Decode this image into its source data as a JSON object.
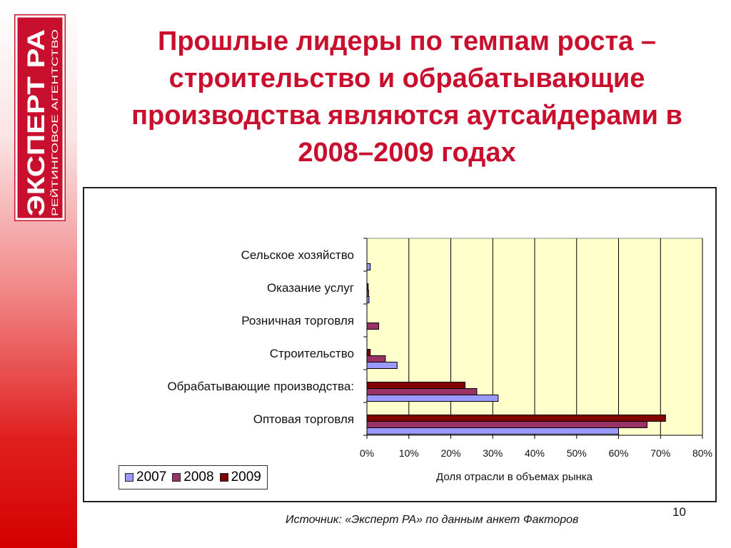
{
  "logo": {
    "main_text": "ЭКСПЕРТ РА",
    "sub_text": "РЕЙТИНГОВОЕ АГЕНТСТВО"
  },
  "title": "Прошлые лидеры по темпам роста – строительство и обрабатывающие производства являются аутсайдерами в 2008–2009 годах",
  "chart_data": {
    "type": "bar",
    "orientation": "horizontal",
    "categories": [
      "Сельское хозяйство",
      "Оказание услуг",
      "Розничная торговля",
      "Строительство",
      "Обрабатывающие производства:",
      "Оптовая торговля"
    ],
    "series": [
      {
        "name": "2007",
        "color": "#9999ff",
        "values": [
          0.8,
          0.5,
          0,
          7.2,
          31.3,
          60.0
        ]
      },
      {
        "name": "2008",
        "color": "#993366",
        "values": [
          0,
          0.4,
          2.8,
          4.4,
          26.2,
          66.8
        ]
      },
      {
        "name": "2009",
        "color": "#800000",
        "values": [
          0,
          0.3,
          0,
          0.8,
          23.4,
          71.2
        ]
      }
    ],
    "xlim": [
      0,
      80
    ],
    "xticks": [
      "0%",
      "10%",
      "20%",
      "30%",
      "40%",
      "50%",
      "60%",
      "70%",
      "80%"
    ],
    "xlabel": "Доля отрасли в объемах рынка",
    "legend_position": "bottom-left",
    "plot_background": "#ffffcc",
    "grid": true
  },
  "source": "Источник: «Эксперт РА» по данным анкет Факторов",
  "page_number": "10"
}
